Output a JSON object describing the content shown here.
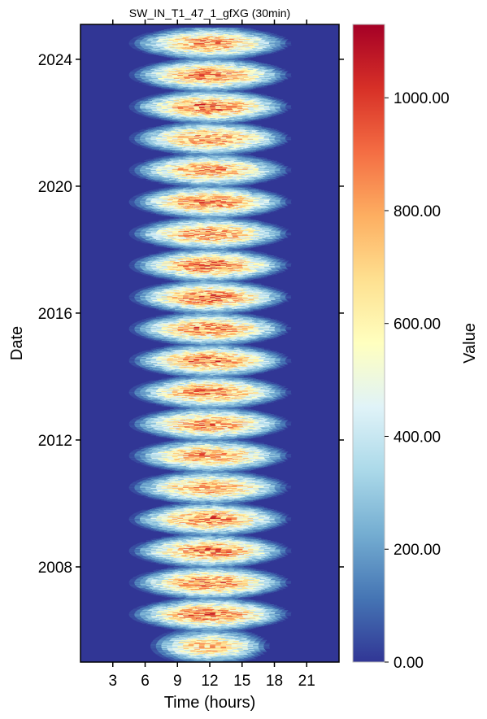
{
  "chart_data": {
    "type": "heatmap",
    "title": "SW_IN_T1_47_1_gfXG (30min)",
    "xlabel": "Time (hours)",
    "ylabel": "Date",
    "xlim": [
      0,
      24
    ],
    "ylim": [
      2005.0,
      2025.1
    ],
    "x_ticks": [
      3,
      6,
      9,
      12,
      15,
      18,
      21
    ],
    "x_tick_labels": [
      "3",
      "6",
      "9",
      "12",
      "15",
      "18",
      "21"
    ],
    "y_ticks": [
      2008,
      2012,
      2016,
      2020,
      2024
    ],
    "y_tick_labels": [
      "2008",
      "2012",
      "2016",
      "2020",
      "2024"
    ],
    "colorbar": {
      "label": "Value",
      "colormap": "RdYlBu_r",
      "range": [
        0,
        1130
      ],
      "ticks": [
        0,
        200,
        400,
        600,
        800,
        1000
      ],
      "tick_labels": [
        "0.00",
        "200.00",
        "400.00",
        "600.00",
        "800.00",
        "1000.00"
      ],
      "colors": [
        "#313695",
        "#4575b4",
        "#74add1",
        "#abd9e9",
        "#e0f3f8",
        "#ffffbf",
        "#fee090",
        "#fdae61",
        "#f46d43",
        "#d73027",
        "#a50026"
      ]
    },
    "series": [
      {
        "values": [
          {
            "year": 2005.5,
            "peak_value": 900,
            "daylight_hours": [
              6.5,
              17.5
            ]
          },
          {
            "year": 2006.5,
            "peak_value": 1030,
            "daylight_hours": [
              4.5,
              19.5
            ]
          },
          {
            "year": 2007.5,
            "peak_value": 1000,
            "daylight_hours": [
              4.5,
              19.5
            ]
          },
          {
            "year": 2008.5,
            "peak_value": 1020,
            "daylight_hours": [
              4.5,
              19.5
            ]
          },
          {
            "year": 2009.5,
            "peak_value": 1000,
            "daylight_hours": [
              4.5,
              19.5
            ]
          },
          {
            "year": 2010.5,
            "peak_value": 950,
            "daylight_hours": [
              4.5,
              19.5
            ]
          },
          {
            "year": 2011.5,
            "peak_value": 960,
            "daylight_hours": [
              4.5,
              19.5
            ]
          },
          {
            "year": 2012.5,
            "peak_value": 980,
            "daylight_hours": [
              4.5,
              19.5
            ]
          },
          {
            "year": 2013.5,
            "peak_value": 1000,
            "daylight_hours": [
              4.5,
              19.5
            ]
          },
          {
            "year": 2014.5,
            "peak_value": 1020,
            "daylight_hours": [
              4.5,
              19.5
            ]
          },
          {
            "year": 2015.5,
            "peak_value": 1000,
            "daylight_hours": [
              4.5,
              19.5
            ]
          },
          {
            "year": 2016.5,
            "peak_value": 1040,
            "daylight_hours": [
              4.5,
              19.5
            ]
          },
          {
            "year": 2017.5,
            "peak_value": 1030,
            "daylight_hours": [
              4.5,
              19.5
            ]
          },
          {
            "year": 2018.5,
            "peak_value": 980,
            "daylight_hours": [
              4.5,
              19.5
            ]
          },
          {
            "year": 2019.5,
            "peak_value": 1020,
            "daylight_hours": [
              4.5,
              19.5
            ]
          },
          {
            "year": 2020.5,
            "peak_value": 950,
            "daylight_hours": [
              4.5,
              19.5
            ]
          },
          {
            "year": 2021.5,
            "peak_value": 980,
            "daylight_hours": [
              4.5,
              19.5
            ]
          },
          {
            "year": 2022.5,
            "peak_value": 1050,
            "daylight_hours": [
              4.5,
              19.5
            ]
          },
          {
            "year": 2023.5,
            "peak_value": 1000,
            "daylight_hours": [
              4.5,
              19.5
            ]
          },
          {
            "year": 2024.5,
            "peak_value": 950,
            "daylight_hours": [
              4.5,
              19.5
            ]
          }
        ]
      }
    ]
  }
}
